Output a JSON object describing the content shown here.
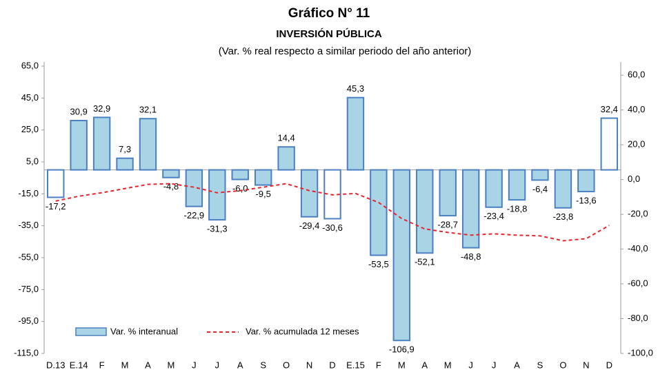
{
  "chart_data": {
    "type": "bar",
    "title": "Gráfico N° 11",
    "subtitle": "INVERSIÓN PÚBLICA",
    "note": "(Var. % real respecto a similar periodo del año anterior)",
    "categories": [
      "D.13",
      "E.14",
      "F",
      "M",
      "A",
      "M",
      "J",
      "J",
      "A",
      "S",
      "O",
      "N",
      "D",
      "E.15",
      "F",
      "M",
      "A",
      "M",
      "J",
      "J",
      "A",
      "S",
      "O",
      "N",
      "D"
    ],
    "ylim": [
      -115,
      67.6
    ],
    "yticks": [
      {
        "value": -115,
        "label": "-115,0"
      },
      {
        "value": -95,
        "label": "-95,0"
      },
      {
        "value": -75,
        "label": "-75,0"
      },
      {
        "value": -55,
        "label": "-55,0"
      },
      {
        "value": -35,
        "label": "-35,0"
      },
      {
        "value": -15,
        "label": "-15,0"
      },
      {
        "value": 5,
        "label": "5,0"
      },
      {
        "value": 25,
        "label": "25,0"
      },
      {
        "value": 45,
        "label": "45,0"
      },
      {
        "value": 65,
        "label": "65,0"
      }
    ],
    "y2lim": [
      -100,
      67.6
    ],
    "y2ticks": [
      {
        "value": -100,
        "label": "-100,0"
      },
      {
        "value": -80,
        "label": "-80,0"
      },
      {
        "value": -60,
        "label": "-60,0"
      },
      {
        "value": -40,
        "label": "-40,0"
      },
      {
        "value": -20,
        "label": "-20,0"
      },
      {
        "value": 0,
        "label": "0,0"
      },
      {
        "value": 20,
        "label": "20,0"
      },
      {
        "value": 40,
        "label": "40,0"
      },
      {
        "value": 60,
        "label": "60,0"
      }
    ],
    "series": [
      {
        "name": "Var. % interanual",
        "type": "bar",
        "color": "#a9d4e6",
        "stroke": "#4a7fc1",
        "colors": [
          "#ffffff",
          "#a9d4e6",
          "#a9d4e6",
          "#a9d4e6",
          "#a9d4e6",
          "#a9d4e6",
          "#a9d4e6",
          "#a9d4e6",
          "#a9d4e6",
          "#a9d4e6",
          "#a9d4e6",
          "#a9d4e6",
          "#ffffff",
          "#a9d4e6",
          "#a9d4e6",
          "#a9d4e6",
          "#a9d4e6",
          "#a9d4e6",
          "#a9d4e6",
          "#a9d4e6",
          "#a9d4e6",
          "#a9d4e6",
          "#a9d4e6",
          "#a9d4e6",
          "#ffffff"
        ],
        "values": [
          -17.2,
          30.9,
          32.9,
          7.3,
          32.1,
          -4.8,
          -22.9,
          -31.3,
          -6.0,
          -9.5,
          14.4,
          -29.4,
          -30.6,
          45.3,
          -53.5,
          -106.9,
          -52.1,
          -28.7,
          -48.8,
          -23.4,
          -18.8,
          -6.4,
          -23.8,
          -13.6,
          32.4
        ],
        "value_labels": [
          "-17,2",
          "30,9",
          "32,9",
          "7,3",
          "32,1",
          "-4,8",
          "-22,9",
          "-31,3",
          "-6,0",
          "-9,5",
          "14,4",
          "-29,4",
          "-30,6",
          "45,3",
          "-53,5",
          "-106,9",
          "-52,1",
          "-28,7",
          "-48,8",
          "-23,4",
          "-18,8",
          "-6,4",
          "-23,8",
          "-13,6",
          "32,4"
        ]
      },
      {
        "name": "Var. % acumulada 12 meses",
        "type": "line",
        "axis": "y2",
        "color": "#e8232a",
        "dashed": true,
        "values": [
          -12.4,
          -9.6,
          -7.6,
          -5.2,
          -2.8,
          -2.4,
          -4.4,
          -7.6,
          -6.4,
          -4.4,
          -2.4,
          -6.4,
          -8.8,
          -8.0,
          -13.2,
          -22.4,
          -28.4,
          -30.4,
          -32.0,
          -31.2,
          -32.0,
          -32.4,
          -35.2,
          -34.0,
          -26.4
        ]
      }
    ]
  }
}
